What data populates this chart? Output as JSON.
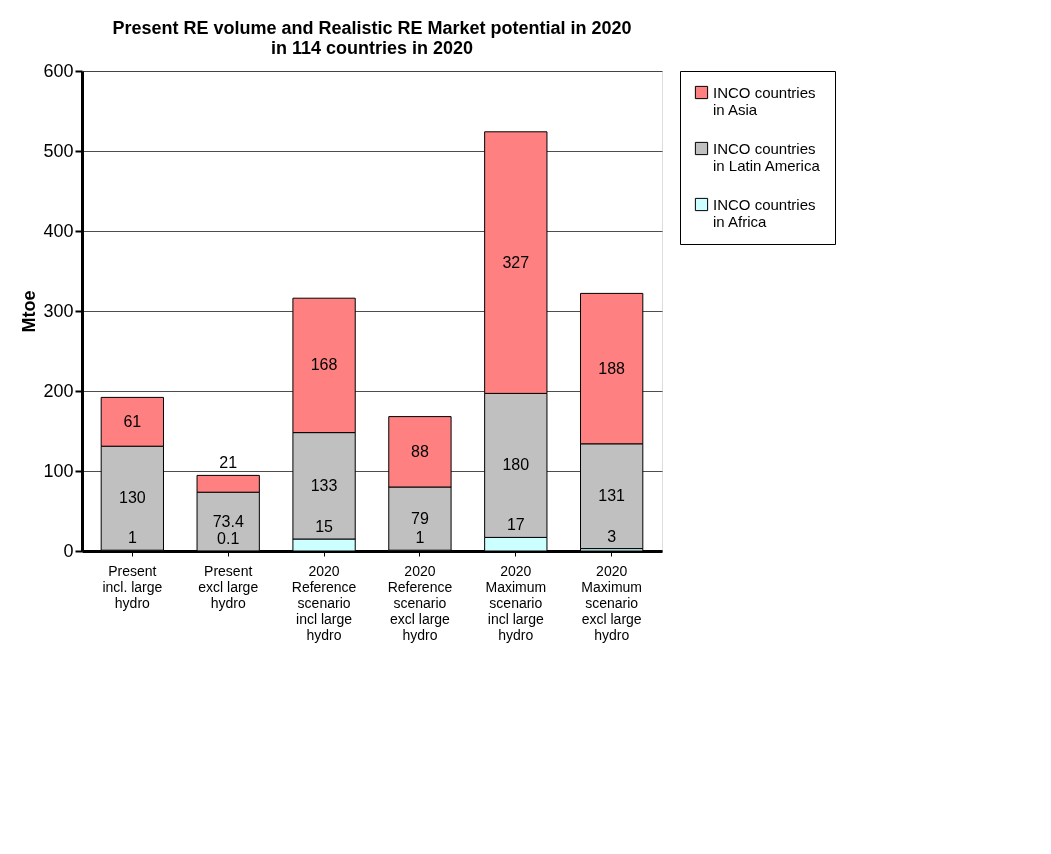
{
  "chart_data": {
    "type": "bar",
    "title": "Present RE volume and Realistic RE Market potential in 2020\nin 114 countries in 2020",
    "ylabel": "Mtoe",
    "categories": [
      "Present\nincl. large\nhydro",
      "Present\nexcl large\nhydro",
      "2020\nReference\nscenario\nincl large\nhydro",
      "2020\nReference\nscenario\nexcl large\nhydro",
      "2020\nMaximum\nscenario\nincl large\nhydro",
      "2020\nMaximum\nscenario\nexcl large\nhydro"
    ],
    "series": [
      {
        "name": "INCO countries\nin Africa",
        "color": "#ccffff",
        "values": [
          1,
          0.1,
          15,
          1,
          17,
          3
        ]
      },
      {
        "name": "INCO countries\nin Latin America",
        "color": "#c0c0c0",
        "values": [
          130,
          73.4,
          133,
          79,
          180,
          131
        ]
      },
      {
        "name": "INCO countries\nin Asia",
        "color": "#ff8080",
        "values": [
          61,
          21,
          168,
          88,
          327,
          188
        ]
      }
    ],
    "stacked": true,
    "data_labels": true,
    "ylim": [
      0,
      600
    ],
    "yticks": [
      0,
      100,
      200,
      300,
      400,
      500,
      600
    ],
    "grid": "y",
    "legend": "right"
  }
}
